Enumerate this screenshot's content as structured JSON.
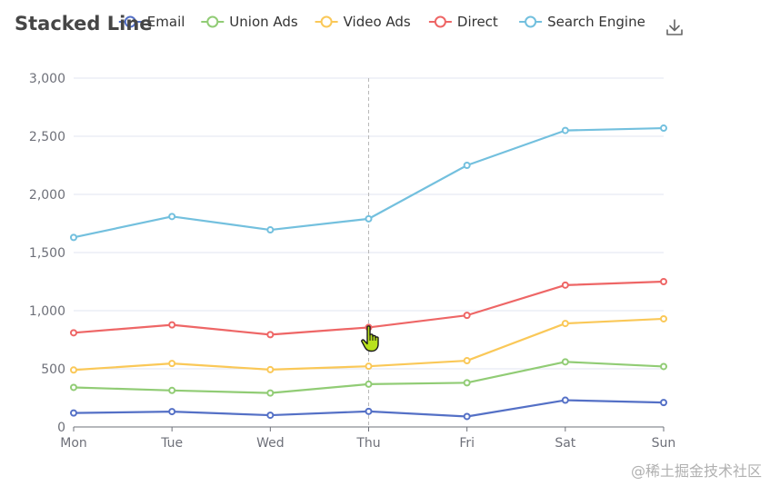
{
  "toolbox": {
    "save_icon": "download-icon"
  },
  "watermark": "@稀土掘金技术社区",
  "cursor": {
    "icon": "hand-pointer-icon",
    "color": "#b8e11d"
  },
  "chart_data": {
    "type": "line",
    "stacked": true,
    "title": "Stacked Line",
    "xlabel": "",
    "ylabel": "",
    "categories": [
      "Mon",
      "Tue",
      "Wed",
      "Thu",
      "Fri",
      "Sat",
      "Sun"
    ],
    "ylim": [
      0,
      3000
    ],
    "yticks": [
      0,
      500,
      1000,
      1500,
      2000,
      2500,
      3000
    ],
    "ytick_labels": [
      "0",
      "500",
      "1,000",
      "1,500",
      "2,000",
      "2,500",
      "3,000"
    ],
    "grid": true,
    "legend_position": "top",
    "pointer_category": "Thu",
    "series": [
      {
        "name": "Email",
        "color": "#5470c6",
        "values": [
          120,
          132,
          101,
          134,
          90,
          230,
          210
        ]
      },
      {
        "name": "Union Ads",
        "color": "#91cc75",
        "values": [
          220,
          182,
          191,
          234,
          290,
          330,
          310
        ]
      },
      {
        "name": "Video Ads",
        "color": "#fac858",
        "values": [
          150,
          232,
          201,
          154,
          190,
          330,
          410
        ]
      },
      {
        "name": "Direct",
        "color": "#ee6666",
        "values": [
          320,
          332,
          301,
          334,
          390,
          330,
          320
        ]
      },
      {
        "name": "Search Engine",
        "color": "#73c0de",
        "values": [
          820,
          932,
          901,
          934,
          1290,
          1330,
          1320
        ]
      }
    ]
  }
}
